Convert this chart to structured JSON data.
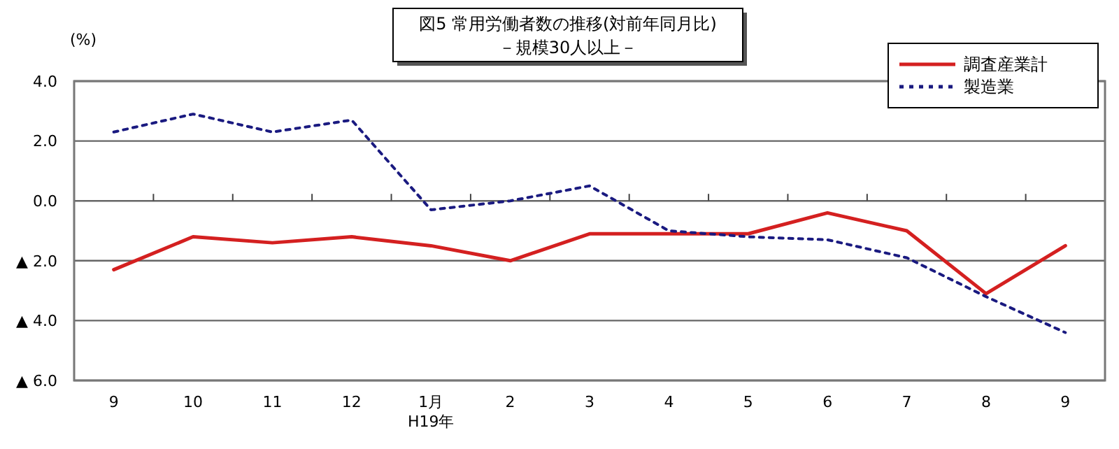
{
  "chart_data": {
    "type": "line",
    "title": "図5  常用労働者数の推移(対前年同月比)",
    "subtitle": "－規模30人以上－",
    "ylabel": "(%)",
    "categories": [
      "9",
      "10",
      "11",
      "12",
      "1月\nH19年",
      "2",
      "3",
      "4",
      "5",
      "6",
      "7",
      "8",
      "9"
    ],
    "series": [
      {
        "name": "調査産業計",
        "color": "#d42020",
        "line_style": "solid",
        "values": [
          -2.3,
          -1.2,
          -1.4,
          -1.2,
          -1.5,
          -2.0,
          -1.1,
          -1.1,
          -1.1,
          -0.4,
          -1.0,
          -3.1,
          -1.5
        ]
      },
      {
        "name": "製造業",
        "color": "#1a1a80",
        "line_style": "dotted",
        "values": [
          2.3,
          2.9,
          2.3,
          2.7,
          -0.3,
          0.0,
          0.5,
          -1.0,
          -1.2,
          -1.3,
          -1.9,
          -3.2,
          -4.4
        ]
      }
    ],
    "ylim": [
      -6,
      4
    ],
    "yticks": [
      {
        "value": -6,
        "label": "▲ 6.0"
      },
      {
        "value": -4,
        "label": "▲ 4.0"
      },
      {
        "value": -2,
        "label": "▲ 2.0"
      },
      {
        "value": 0,
        "label": "0.0"
      },
      {
        "value": 2,
        "label": "2.0"
      },
      {
        "value": 4,
        "label": "4.0"
      }
    ],
    "grid": "y",
    "legend": "top right",
    "marker": "none"
  }
}
